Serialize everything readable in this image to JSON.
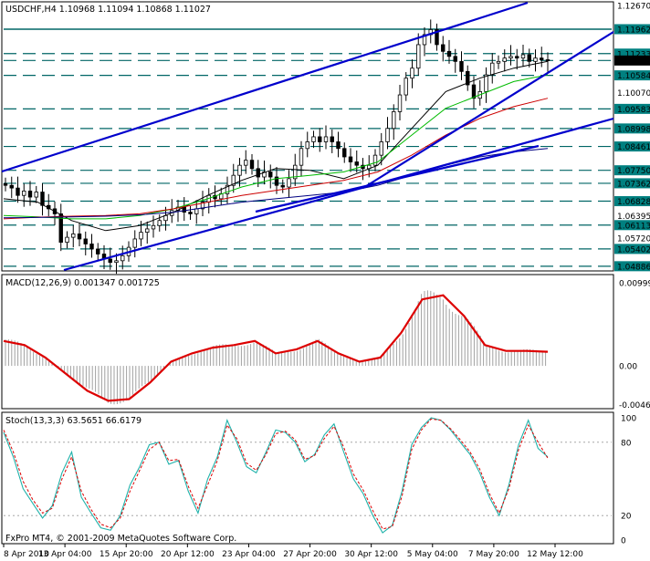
{
  "window": {
    "symbol_line": "USDCHF,H4  1.10968 1.11094 1.10868 1.11027",
    "macd_line": "MACD(12,26,9) 0.001347 0.001725",
    "stoch_line": "Stoch(13,3,3) 63.5651 66.6179",
    "copyright": "FxPro MT4, © 2001-2009 MetaQuotes Software Corp."
  },
  "colors": {
    "background": "#ffffff",
    "candles": "#000000",
    "trendlines": "#0000cc",
    "levels": "#006666",
    "label_box": "#008080",
    "ma_fast": "#000000",
    "ma_green": "#00bb00",
    "ma_red": "#cc0000",
    "ma_navy": "#000080",
    "macd_hist": "#a0a0a0",
    "macd_signal": "#dd0000",
    "stoch_main": "#20b2aa",
    "stoch_signal": "#dd0000"
  },
  "chart_data": [
    {
      "type": "candlestick",
      "title": "USDCHF,H4",
      "ohlc_last": {
        "open": 1.10968,
        "high": 1.11094,
        "low": 1.10868,
        "close": 1.11027
      },
      "ylim": [
        1.048,
        1.1267
      ],
      "price_axis_ticks": [
        "1.12670",
        "1.11962",
        "1.11233",
        "1.11027",
        "1.10584",
        "1.10070",
        "1.09583",
        "1.08998",
        "1.08461",
        "1.07750",
        "1.07362",
        "1.06828",
        "1.06395",
        "1.06113",
        "1.05720",
        "1.05402",
        "1.04886"
      ],
      "highlighted_levels": [
        1.11962,
        1.11233,
        1.11027,
        1.10584,
        1.09583,
        1.08998,
        1.08461,
        1.0775,
        1.07362,
        1.06828,
        1.06113,
        1.05402,
        1.04886
      ],
      "x_labels": [
        "8 Apr 2010",
        "13 Apr 04:00",
        "15 Apr 20:00",
        "20 Apr 12:00",
        "23 Apr 04:00",
        "27 Apr 20:00",
        "30 Apr 12:00",
        "5 May 04:00",
        "7 May 20:00",
        "12 May 12:00"
      ],
      "close_series": [
        1.073,
        1.0722,
        1.07,
        1.0713,
        1.0695,
        1.071,
        1.067,
        1.066,
        1.0645,
        1.056,
        1.0575,
        1.0585,
        1.057,
        1.0555,
        1.054,
        1.0525,
        1.051,
        1.05,
        1.0505,
        1.052,
        1.0545,
        1.057,
        1.059,
        1.06,
        1.061,
        1.0625,
        1.064,
        1.0655,
        1.0665,
        1.065,
        1.0645,
        1.066,
        1.068,
        1.07,
        1.069,
        1.0705,
        1.073,
        1.076,
        1.079,
        1.0805,
        1.078,
        1.0755,
        1.077,
        1.0755,
        1.073,
        1.0725,
        1.075,
        1.079,
        1.084,
        1.086,
        1.0875,
        1.086,
        1.0875,
        1.086,
        1.084,
        1.0815,
        1.08,
        1.079,
        1.078,
        1.079,
        1.082,
        1.086,
        1.09,
        1.095,
        1.1,
        1.105,
        1.108,
        1.115,
        1.118,
        1.1195,
        1.115,
        1.113,
        1.1115,
        1.11,
        1.107,
        1.103,
        1.099,
        1.101,
        1.106,
        1.1095,
        1.11,
        1.111,
        1.1115,
        1.111,
        1.112,
        1.11,
        1.111,
        1.1105,
        1.1103
      ],
      "moving_averages": [
        {
          "name": "fast",
          "color": "#000000",
          "values": [
            1.069,
            1.068,
            1.0625,
            1.0595,
            1.061,
            1.065,
            1.07,
            1.0745,
            1.078,
            1.0775,
            1.075,
            1.079,
            1.09,
            1.101,
            1.105,
            1.108,
            1.11
          ]
        },
        {
          "name": "green",
          "color": "#00bb00",
          "values": [
            1.064,
            1.0636,
            1.063,
            1.063,
            1.064,
            1.066,
            1.069,
            1.0725,
            1.075,
            1.076,
            1.077,
            1.08,
            1.088,
            1.096,
            1.1,
            1.104,
            1.106
          ]
        },
        {
          "name": "red",
          "color": "#cc0000",
          "values": [
            1.063,
            1.0635,
            1.0638,
            1.064,
            1.0645,
            1.066,
            1.068,
            1.07,
            1.0715,
            1.073,
            1.0745,
            1.077,
            1.082,
            1.088,
            1.093,
            1.0965,
            1.099
          ]
        },
        {
          "name": "navy",
          "color": "#000080",
          "values": [
            1.0633,
            1.0634,
            1.0636,
            1.0638,
            1.0642,
            1.065,
            1.0665,
            1.068,
            1.069,
            1.07,
            1.071,
            1.073,
            1.076,
            1.079,
            1.0815,
            1.083,
            1.084
          ]
        }
      ]
    },
    {
      "type": "bar",
      "title": "MACD(12,26,9)",
      "main": 0.001347,
      "signal_value": 0.001725,
      "ylim": [
        -0.0046,
        0.01
      ],
      "axis_ticks": [
        "0.00999",
        "0.00",
        "-0.00468"
      ],
      "signal": [
        0.003,
        0.0025,
        0.001,
        -0.001,
        -0.003,
        -0.0042,
        -0.004,
        -0.002,
        0.0005,
        0.0015,
        0.0022,
        0.0025,
        0.003,
        0.0015,
        0.002,
        0.003,
        0.0015,
        0.0005,
        0.001,
        0.004,
        0.008,
        0.0085,
        0.006,
        0.0025,
        0.0018,
        0.0018,
        0.0017
      ]
    },
    {
      "type": "line",
      "title": "Stoch(13,3,3)",
      "main": 63.5651,
      "signal_value": 66.6179,
      "ylim": [
        0,
        100
      ],
      "axis_ticks": [
        "100",
        "80",
        "20",
        "0"
      ],
      "k": [
        88,
        68,
        42,
        30,
        18,
        28,
        55,
        72,
        35,
        22,
        10,
        8,
        20,
        45,
        60,
        78,
        80,
        62,
        65,
        40,
        22,
        50,
        68,
        98,
        80,
        60,
        55,
        72,
        90,
        88,
        80,
        64,
        70,
        86,
        95,
        72,
        50,
        38,
        20,
        6,
        12,
        40,
        78,
        92,
        100,
        98,
        90,
        80,
        70,
        55,
        35,
        20,
        45,
        78,
        98,
        75,
        68
      ],
      "d": [
        90,
        72,
        48,
        33,
        22,
        26,
        50,
        68,
        40,
        25,
        13,
        10,
        18,
        40,
        57,
        74,
        80,
        65,
        66,
        44,
        26,
        45,
        65,
        94,
        83,
        63,
        57,
        70,
        87,
        89,
        82,
        66,
        69,
        83,
        93,
        76,
        54,
        41,
        24,
        9,
        11,
        36,
        74,
        90,
        99,
        98,
        91,
        82,
        72,
        58,
        38,
        22,
        42,
        74,
        94,
        80,
        67
      ]
    }
  ]
}
